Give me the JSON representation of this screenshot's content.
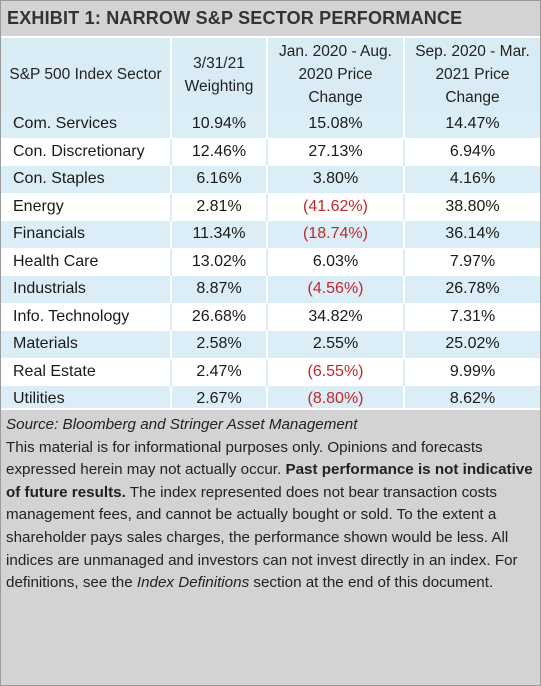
{
  "title": "EXHIBIT 1: NARROW S&P SECTOR PERFORMANCE",
  "headers": [
    "S&P 500 Index Sector",
    "3/31/21 Weighting",
    "Jan. 2020 - Aug. 2020 Price Change",
    "Sep. 2020 - Mar. 2021 Price Change"
  ],
  "rows": [
    {
      "sector": "Com. Services",
      "weight": "10.94%",
      "jan_aug": "15.08%",
      "sep_mar": "14.47%",
      "neg": false
    },
    {
      "sector": "Con. Discretionary",
      "weight": "12.46%",
      "jan_aug": "27.13%",
      "sep_mar": "6.94%",
      "neg": false
    },
    {
      "sector": "Con. Staples",
      "weight": "6.16%",
      "jan_aug": "3.80%",
      "sep_mar": "4.16%",
      "neg": false
    },
    {
      "sector": "Energy",
      "weight": "2.81%",
      "jan_aug": "(41.62%)",
      "sep_mar": "38.80%",
      "neg": true
    },
    {
      "sector": "Financials",
      "weight": "11.34%",
      "jan_aug": "(18.74%)",
      "sep_mar": "36.14%",
      "neg": true
    },
    {
      "sector": "Health Care",
      "weight": "13.02%",
      "jan_aug": "6.03%",
      "sep_mar": "7.97%",
      "neg": false
    },
    {
      "sector": "Industrials",
      "weight": "8.87%",
      "jan_aug": "(4.56%)",
      "sep_mar": "26.78%",
      "neg": true
    },
    {
      "sector": "Info. Technology",
      "weight": "26.68%",
      "jan_aug": "34.82%",
      "sep_mar": "7.31%",
      "neg": false
    },
    {
      "sector": "Materials",
      "weight": "2.58%",
      "jan_aug": "2.55%",
      "sep_mar": "25.02%",
      "neg": false
    },
    {
      "sector": "Real Estate",
      "weight": "2.47%",
      "jan_aug": "(6.55%)",
      "sep_mar": "9.99%",
      "neg": true
    },
    {
      "sector": "Utilities",
      "weight": "2.67%",
      "jan_aug": "(8.80%)",
      "sep_mar": "8.62%",
      "neg": true
    }
  ],
  "source": "Source: Bloomberg and Stringer Asset Management",
  "disclaimer": {
    "part1": "This material is for informational purposes only. Opinions and forecasts expressed herein may not actually occur. ",
    "bold": "Past performance is not indicative of future results.",
    "part2": " The index represented does not bear transaction costs management fees, and cannot be actually bought or sold. To the extent a shareholder pays sales charges, the performance shown would be less. All indices are unmanaged and investors can not invest directly in an index. For definitions, see the ",
    "italic": "Index Definitions",
    "part3": " section at the end of this document."
  },
  "colors": {
    "header_fill": "#d9ecf5",
    "band_fill": "#dbedf6",
    "title_fill": "#d3d3d3",
    "negative_text": "#c0292b"
  }
}
